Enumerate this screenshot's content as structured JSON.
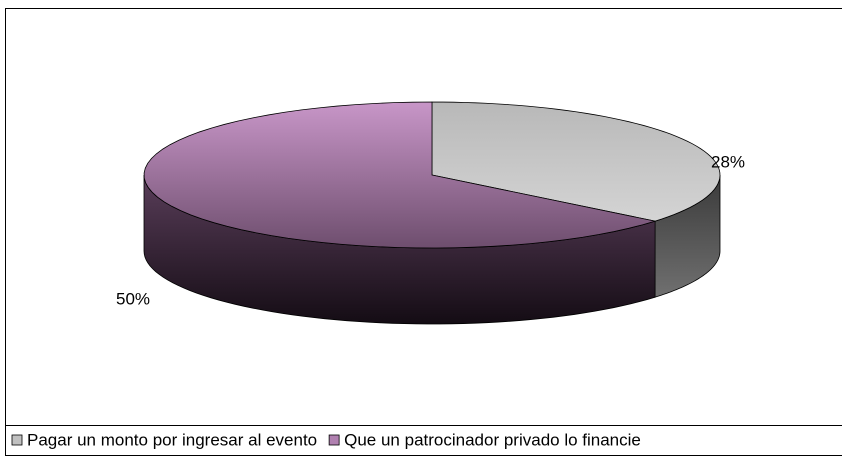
{
  "chart_data": {
    "type": "pie3d",
    "categories": [
      "Pagar un monto por ingresar al evento",
      "Que un patrocinador privado lo financie"
    ],
    "values": [
      28,
      50
    ],
    "value_labels": [
      "28%",
      "50%"
    ],
    "colors": [
      "#c0c0c0",
      "#b080b0"
    ],
    "legend": "bottom"
  }
}
